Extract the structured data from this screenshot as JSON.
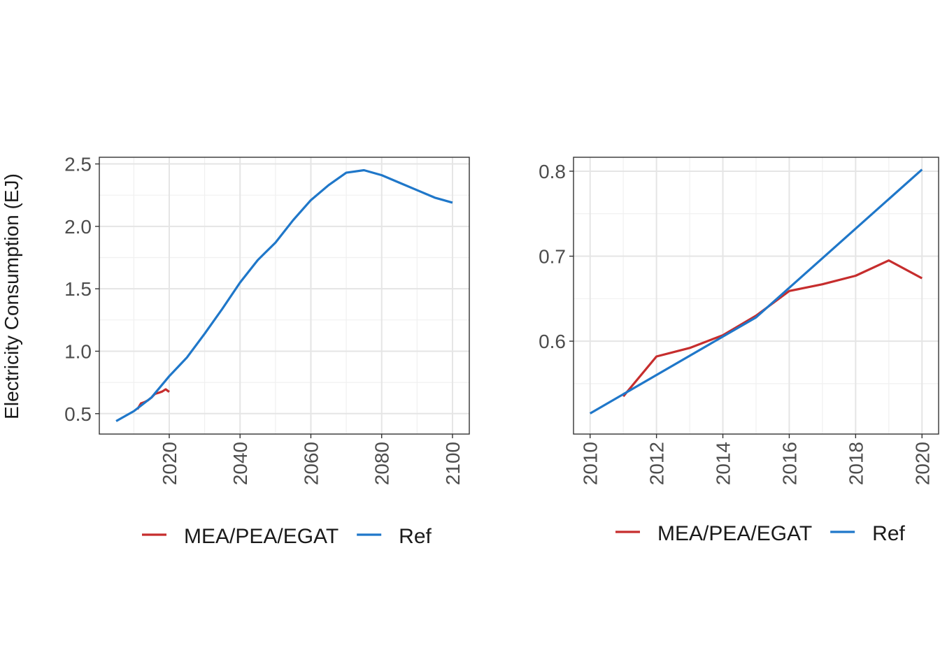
{
  "figure": {
    "ylabel": "Electricity Consumption (EJ)"
  },
  "chart_data": [
    {
      "type": "line",
      "title": "",
      "xlabel": "",
      "ylabel": "Electricity Consumption (EJ)",
      "xlim": [
        2005,
        2100
      ],
      "ylim": [
        0.43,
        2.5
      ],
      "x_ticks": [
        2020,
        2040,
        2060,
        2080,
        2100
      ],
      "y_ticks": [
        0.5,
        1.0,
        1.5,
        2.0,
        2.5
      ],
      "x_tick_labels": [
        "2020",
        "2040",
        "2060",
        "2080",
        "2100"
      ],
      "y_tick_labels": [
        "0.5",
        "1.0",
        "1.5",
        "2.0",
        "2.5"
      ],
      "grid": true,
      "legend_position": "bottom",
      "series": [
        {
          "name": "MEA/PEA/EGAT",
          "color": "#c62d2d",
          "x": [
            2011,
            2012,
            2013,
            2014,
            2015,
            2016,
            2017,
            2018,
            2019,
            2020
          ],
          "y": [
            0.535,
            0.582,
            0.592,
            0.607,
            0.63,
            0.659,
            0.667,
            0.677,
            0.695,
            0.674
          ]
        },
        {
          "name": "Ref",
          "color": "#1f77c9",
          "x": [
            2005,
            2010,
            2015,
            2020,
            2025,
            2030,
            2035,
            2040,
            2045,
            2050,
            2055,
            2060,
            2065,
            2070,
            2075,
            2080,
            2085,
            2090,
            2095,
            2100
          ],
          "y": [
            0.44,
            0.52,
            0.63,
            0.8,
            0.95,
            1.14,
            1.34,
            1.55,
            1.73,
            1.87,
            2.05,
            2.21,
            2.33,
            2.43,
            2.45,
            2.41,
            2.35,
            2.29,
            2.23,
            2.19
          ]
        }
      ]
    },
    {
      "type": "line",
      "title": "",
      "xlabel": "",
      "ylabel": "",
      "xlim": [
        2010,
        2020
      ],
      "ylim": [
        0.5,
        0.8
      ],
      "x_ticks": [
        2010,
        2012,
        2014,
        2016,
        2018,
        2020
      ],
      "y_ticks": [
        0.6,
        0.7,
        0.8
      ],
      "x_tick_labels": [
        "2010",
        "2012",
        "2014",
        "2016",
        "2018",
        "2020"
      ],
      "y_tick_labels": [
        "0.6",
        "0.7",
        "0.8"
      ],
      "grid": true,
      "legend_position": "bottom",
      "series": [
        {
          "name": "MEA/PEA/EGAT",
          "color": "#c62d2d",
          "x": [
            2011,
            2012,
            2013,
            2014,
            2015,
            2016,
            2017,
            2018,
            2019,
            2020
          ],
          "y": [
            0.535,
            0.582,
            0.592,
            0.607,
            0.63,
            0.659,
            0.667,
            0.677,
            0.695,
            0.674
          ]
        },
        {
          "name": "Ref",
          "color": "#1f77c9",
          "x": [
            2010,
            2015,
            2020
          ],
          "y": [
            0.515,
            0.628,
            0.802
          ]
        }
      ]
    }
  ]
}
